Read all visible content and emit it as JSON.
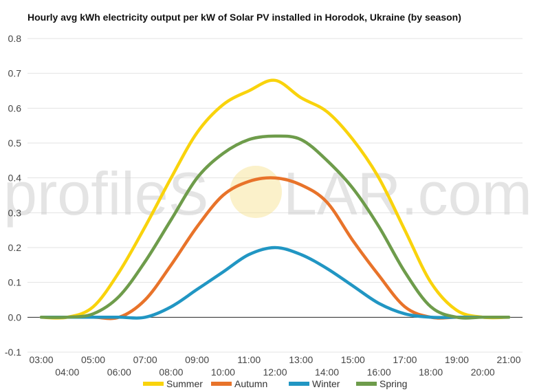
{
  "chart_data": {
    "type": "line",
    "title": "Hourly avg kWh electricity output per kW of Solar PV installed in Horodok, Ukraine (by season)",
    "xlabel": "",
    "ylabel": "",
    "ylim": [
      -0.1,
      0.8
    ],
    "yticks": [
      "-0.1",
      "0.0",
      "0.1",
      "0.2",
      "0.3",
      "0.4",
      "0.5",
      "0.6",
      "0.7",
      "0.8"
    ],
    "categories": [
      "03:00",
      "04:00",
      "05:00",
      "06:00",
      "07:00",
      "08:00",
      "09:00",
      "10:00",
      "11:00",
      "12:00",
      "13:00",
      "14:00",
      "15:00",
      "16:00",
      "17:00",
      "18:00",
      "19:00",
      "20:00",
      "21:00"
    ],
    "grid": true,
    "legend_position": "bottom",
    "series": [
      {
        "name": "Summer",
        "color": "#f9d30c",
        "values": [
          0.0,
          0.0,
          0.03,
          0.13,
          0.26,
          0.4,
          0.53,
          0.61,
          0.65,
          0.68,
          0.63,
          0.59,
          0.51,
          0.4,
          0.25,
          0.1,
          0.02,
          0.0,
          0.0
        ]
      },
      {
        "name": "Autumn",
        "color": "#e8732a",
        "values": [
          0.0,
          0.0,
          0.0,
          0.0,
          0.05,
          0.15,
          0.26,
          0.35,
          0.39,
          0.4,
          0.38,
          0.33,
          0.22,
          0.12,
          0.03,
          0.0,
          0.0,
          0.0,
          0.0
        ]
      },
      {
        "name": "Winter",
        "color": "#2196c3",
        "values": [
          0.0,
          0.0,
          0.0,
          0.0,
          0.0,
          0.03,
          0.08,
          0.13,
          0.18,
          0.2,
          0.18,
          0.14,
          0.09,
          0.04,
          0.01,
          0.0,
          0.0,
          0.0,
          0.0
        ]
      },
      {
        "name": "Spring",
        "color": "#6e9c4b",
        "values": [
          0.0,
          0.0,
          0.01,
          0.06,
          0.16,
          0.28,
          0.4,
          0.47,
          0.51,
          0.52,
          0.51,
          0.45,
          0.37,
          0.26,
          0.13,
          0.03,
          0.0,
          0.0,
          0.0
        ]
      }
    ]
  },
  "watermark": {
    "left": "profileS",
    "right": "LAR.com"
  }
}
